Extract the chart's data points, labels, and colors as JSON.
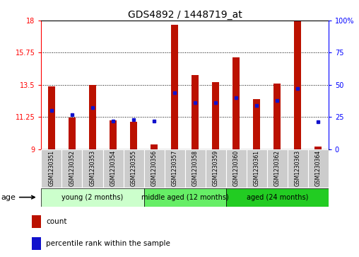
{
  "title": "GDS4892 / 1448719_at",
  "samples": [
    "GSM1230351",
    "GSM1230352",
    "GSM1230353",
    "GSM1230354",
    "GSM1230355",
    "GSM1230356",
    "GSM1230357",
    "GSM1230358",
    "GSM1230359",
    "GSM1230360",
    "GSM1230361",
    "GSM1230362",
    "GSM1230363",
    "GSM1230364"
  ],
  "count_values": [
    13.4,
    11.2,
    13.5,
    11.0,
    10.9,
    9.3,
    17.7,
    14.2,
    13.7,
    15.4,
    12.5,
    13.6,
    18.0,
    9.2
  ],
  "percentile_values": [
    30,
    27,
    32,
    22,
    23,
    22,
    44,
    36,
    36,
    40,
    34,
    38,
    47,
    21
  ],
  "ymin": 9,
  "ymax": 18,
  "yticks_left": [
    9,
    11.25,
    13.5,
    15.75,
    18
  ],
  "yticks_right": [
    0,
    25,
    50,
    75,
    100
  ],
  "groups": [
    {
      "label": "young (2 months)",
      "start": 0,
      "end": 5
    },
    {
      "label": "middle aged (12 months)",
      "start": 5,
      "end": 9
    },
    {
      "label": "aged (24 months)",
      "start": 9,
      "end": 14
    }
  ],
  "group_colors": [
    "#ccffcc",
    "#66ee66",
    "#22cc22"
  ],
  "bar_color": "#bb1100",
  "square_color": "#1111cc",
  "bar_width": 0.35,
  "tick_bg_color": "#cccccc",
  "plot_bg_color": "#ffffff",
  "age_label": "age",
  "legend_count": "count",
  "legend_percentile": "percentile rank within the sample",
  "title_fontsize": 10,
  "axis_fontsize": 7.5,
  "tick_fontsize": 7,
  "legend_fontsize": 7.5,
  "group_fontsize": 7
}
